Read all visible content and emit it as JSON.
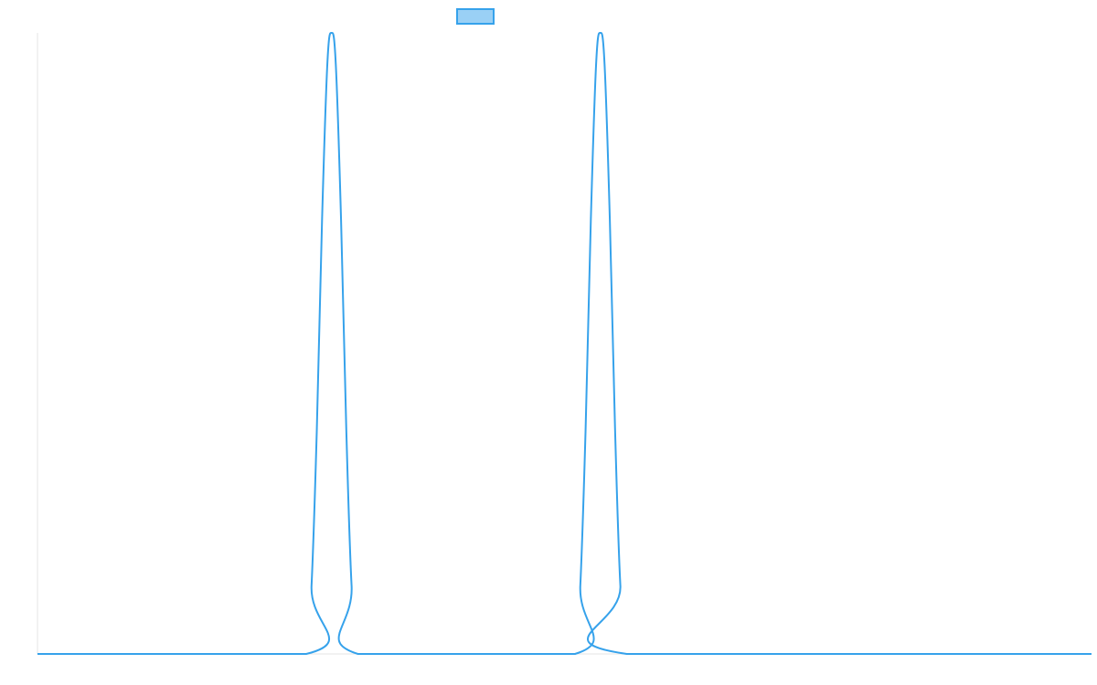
{
  "chart_data": {
    "type": "line",
    "title": "",
    "xlabel": "",
    "ylabel": "",
    "legend": {
      "position": "top-center"
    },
    "grid": false,
    "xlim": [
      0,
      100
    ],
    "ylim": [
      0,
      1
    ],
    "series": [
      {
        "color": "#36a2eb",
        "fill": "#9ad0f5",
        "points": [
          [
            0,
            0
          ],
          [
            25.5,
            0
          ],
          [
            26.0,
            0.11
          ],
          [
            26.5,
            0.36
          ],
          [
            27.0,
            0.7
          ],
          [
            27.5,
            0.95
          ],
          [
            27.9,
            1.0
          ],
          [
            28.3,
            0.95
          ],
          [
            28.8,
            0.7
          ],
          [
            29.3,
            0.36
          ],
          [
            29.8,
            0.11
          ],
          [
            30.4,
            0
          ],
          [
            51.0,
            0
          ],
          [
            51.5,
            0.11
          ],
          [
            52.0,
            0.36
          ],
          [
            52.5,
            0.7
          ],
          [
            53.0,
            0.95
          ],
          [
            53.4,
            1.0
          ],
          [
            53.8,
            0.95
          ],
          [
            54.3,
            0.7
          ],
          [
            54.8,
            0.36
          ],
          [
            55.3,
            0.11
          ],
          [
            55.9,
            0
          ],
          [
            100,
            0
          ]
        ]
      }
    ]
  }
}
